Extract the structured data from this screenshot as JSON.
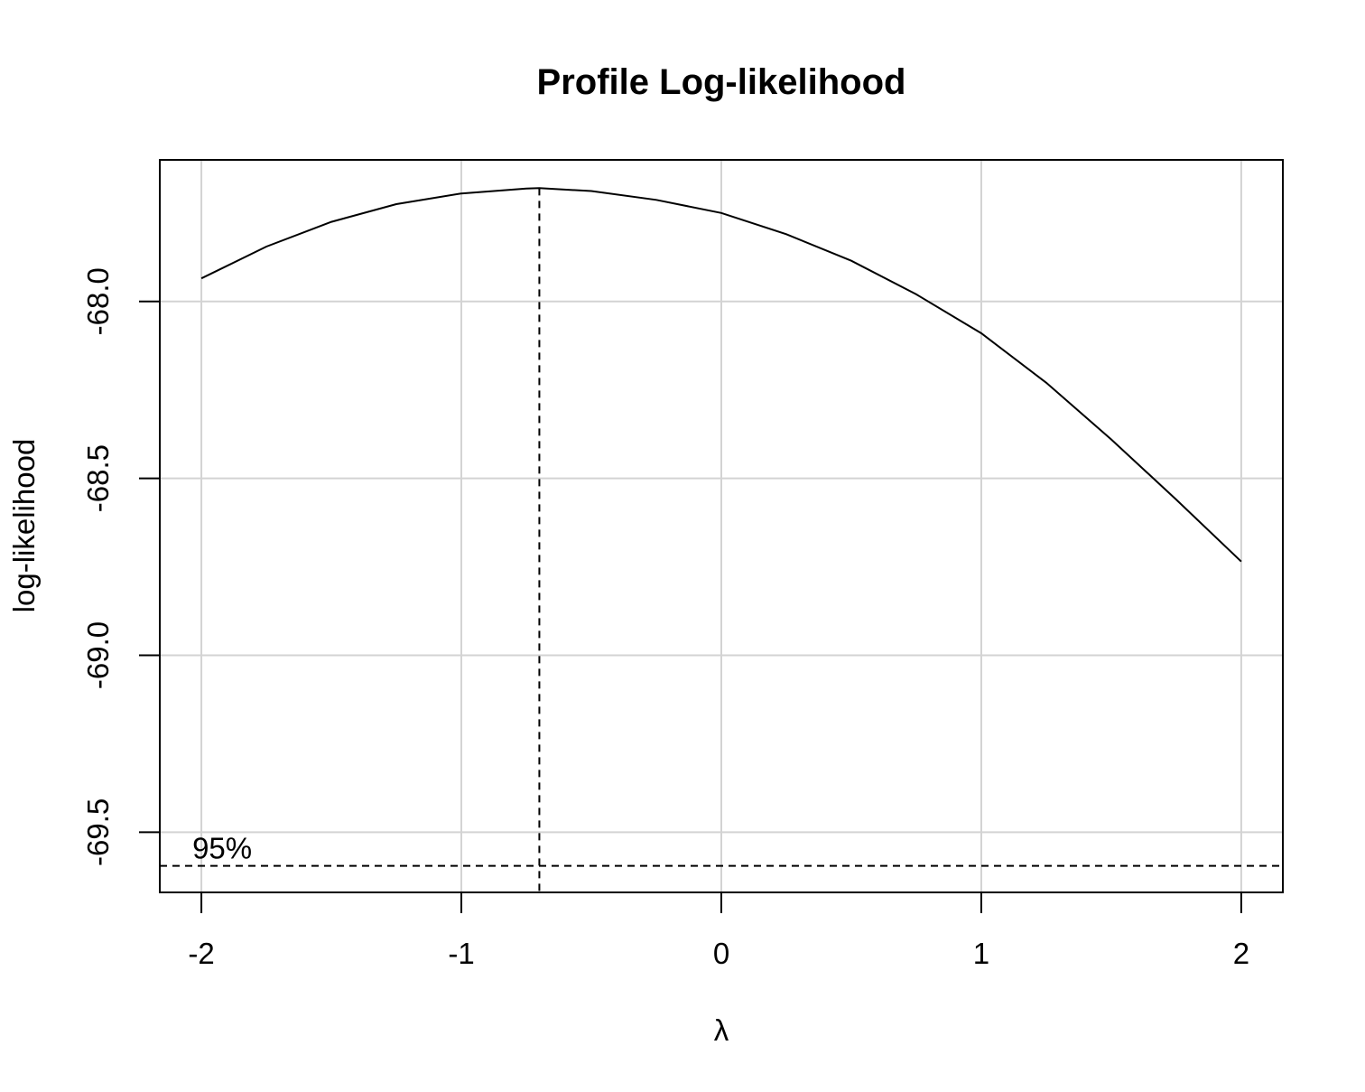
{
  "chart_data": {
    "type": "line",
    "title": "Profile Log-likelihood",
    "xlabel": "λ",
    "ylabel": "log-likelihood",
    "xlim": [
      -2.16,
      2.16
    ],
    "ylim": [
      -69.67,
      -67.6
    ],
    "x_ticks": [
      -2,
      -1,
      0,
      1,
      2
    ],
    "x_tick_labels": [
      "-2",
      "-1",
      "0",
      "1",
      "2"
    ],
    "y_ticks": [
      -68.0,
      -68.5,
      -69.0,
      -69.5
    ],
    "y_tick_labels": [
      "-68.0",
      "-68.5",
      "-69.0",
      "-69.5"
    ],
    "grid": true,
    "series": [
      {
        "x": [
          -2.0,
          -1.75,
          -1.5,
          -1.25,
          -1.0,
          -0.75,
          -0.7,
          -0.5,
          -0.25,
          0.0,
          0.25,
          0.5,
          0.75,
          1.0,
          1.25,
          1.5,
          1.75,
          2.0
        ],
        "y": [
          -67.935,
          -67.845,
          -67.775,
          -67.725,
          -67.695,
          -67.681,
          -67.68,
          -67.688,
          -67.713,
          -67.75,
          -67.81,
          -67.885,
          -67.98,
          -68.09,
          -68.23,
          -68.39,
          -68.56,
          -68.735
        ]
      }
    ],
    "mle_lambda": -0.7,
    "ci_level_y": -69.595,
    "annotations": [
      {
        "text": "95%"
      }
    ],
    "line_color": "#000000",
    "grid_color": "#d3d3d3"
  }
}
